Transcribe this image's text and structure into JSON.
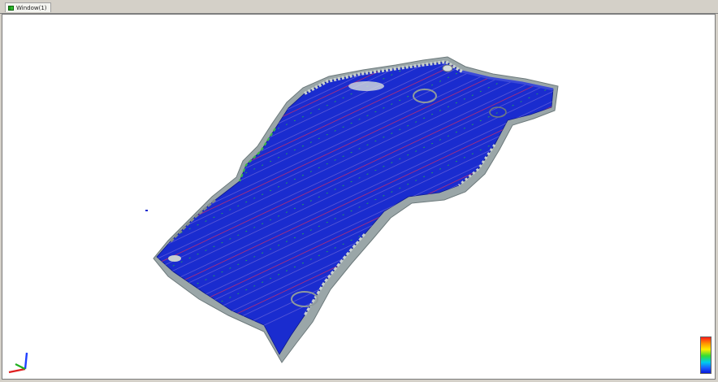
{
  "window": {
    "tab_label": "Window(1)",
    "tab_icon": "green-grid-icon"
  },
  "viewport": {
    "background": "#ffffff",
    "surface_color": "#1a2ccf",
    "contour_colors": [
      "#5a5ad8",
      "#c03070",
      "#27c33a"
    ],
    "edge_colors": [
      "#7f8a8c",
      "#c8d0d0",
      "#3cb44b"
    ]
  },
  "axis_triad": {
    "x_color": "#e02020",
    "y_color": "#20b020",
    "z_color": "#2040ff"
  },
  "legend": {
    "colors": [
      "#ff1a1a",
      "#ff9900",
      "#ffee00",
      "#33dd33",
      "#00ccee",
      "#1a5cff",
      "#0a1ad8"
    ]
  }
}
